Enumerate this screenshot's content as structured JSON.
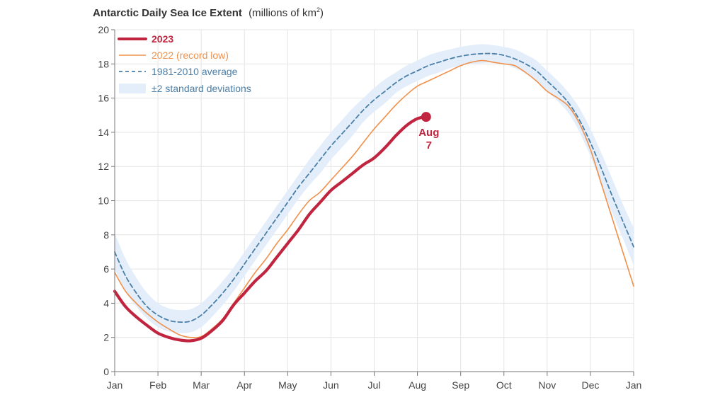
{
  "chart_data": {
    "type": "line",
    "title": "Antarctic Daily Sea Ice Extent",
    "title_units": "(millions of km",
    "title_units_sup": "2",
    "title_units_close": ")",
    "xlabel": "",
    "ylabel": "",
    "ylim": [
      0,
      20
    ],
    "xlim": [
      0,
      12
    ],
    "grid": true,
    "legend_position": "top-left",
    "y_ticks": [
      "0",
      "2",
      "4",
      "6",
      "8",
      "10",
      "12",
      "14",
      "16",
      "18",
      "20"
    ],
    "x_ticks": [
      "Jan",
      "Feb",
      "Mar",
      "Apr",
      "May",
      "Jun",
      "Jul",
      "Aug",
      "Sep",
      "Oct",
      "Nov",
      "Dec",
      "Jan"
    ],
    "legend": {
      "series_2023": "2023",
      "series_2022": "2022 (record low)",
      "series_avg": "1981-2010 average",
      "series_band": "±2 standard deviations"
    },
    "annotation": {
      "line1": "Aug",
      "line2": "7",
      "x": 7.2,
      "y": 14.9
    },
    "colors": {
      "series_2023": "#c0243f",
      "series_2022": "#f0904a",
      "series_avg": "#4a7fa8",
      "band": "#e3eefa",
      "grid": "#e4e4e4",
      "axis": "#777777"
    },
    "series": [
      {
        "name": "2023",
        "x": [
          0,
          0.25,
          0.5,
          0.75,
          1.0,
          1.25,
          1.5,
          1.75,
          2.0,
          2.25,
          2.5,
          2.75,
          3.0,
          3.25,
          3.5,
          3.75,
          4.0,
          4.25,
          4.5,
          4.75,
          5.0,
          5.25,
          5.5,
          5.75,
          6.0,
          6.25,
          6.5,
          6.75,
          7.0,
          7.2
        ],
        "values": [
          4.7,
          3.8,
          3.2,
          2.7,
          2.25,
          2.0,
          1.85,
          1.8,
          1.95,
          2.4,
          3.0,
          3.9,
          4.6,
          5.3,
          5.9,
          6.7,
          7.5,
          8.3,
          9.2,
          9.9,
          10.6,
          11.1,
          11.6,
          12.1,
          12.5,
          13.1,
          13.8,
          14.4,
          14.8,
          14.9
        ]
      },
      {
        "name": "2022 (record low)",
        "x": [
          0,
          0.25,
          0.5,
          0.75,
          1.0,
          1.25,
          1.5,
          1.75,
          2.0,
          2.25,
          2.5,
          2.75,
          3.0,
          3.25,
          3.5,
          3.75,
          4.0,
          4.25,
          4.5,
          4.75,
          5.0,
          5.25,
          5.5,
          5.75,
          6.0,
          6.25,
          6.5,
          6.75,
          7.0,
          7.25,
          7.5,
          7.75,
          8.0,
          8.25,
          8.5,
          8.75,
          9.0,
          9.25,
          9.5,
          9.75,
          10.0,
          10.25,
          10.5,
          10.75,
          11.0,
          11.25,
          11.5,
          11.75,
          12.0
        ],
        "values": [
          5.8,
          4.7,
          4.0,
          3.4,
          2.9,
          2.5,
          2.15,
          2.0,
          2.05,
          2.5,
          3.1,
          4.0,
          4.9,
          5.8,
          6.6,
          7.5,
          8.3,
          9.2,
          10.0,
          10.5,
          11.2,
          11.9,
          12.6,
          13.4,
          14.2,
          14.9,
          15.6,
          16.2,
          16.7,
          17.0,
          17.3,
          17.6,
          17.9,
          18.1,
          18.2,
          18.1,
          18.0,
          17.9,
          17.5,
          17.0,
          16.4,
          16.0,
          15.5,
          14.5,
          13.0,
          11.0,
          9.0,
          7.0,
          5.0
        ]
      },
      {
        "name": "1981-2010 average",
        "x": [
          0,
          0.25,
          0.5,
          0.75,
          1.0,
          1.25,
          1.5,
          1.75,
          2.0,
          2.25,
          2.5,
          2.75,
          3.0,
          3.25,
          3.5,
          3.75,
          4.0,
          4.25,
          4.5,
          4.75,
          5.0,
          5.25,
          5.5,
          5.75,
          6.0,
          6.25,
          6.5,
          6.75,
          7.0,
          7.25,
          7.5,
          7.75,
          8.0,
          8.25,
          8.5,
          8.75,
          9.0,
          9.25,
          9.5,
          9.75,
          10.0,
          10.25,
          10.5,
          10.75,
          11.0,
          11.25,
          11.5,
          11.75,
          12.0
        ],
        "values": [
          7.0,
          5.6,
          4.6,
          3.8,
          3.3,
          3.0,
          2.9,
          2.95,
          3.3,
          3.9,
          4.6,
          5.4,
          6.3,
          7.2,
          8.1,
          9.0,
          9.9,
          10.8,
          11.6,
          12.4,
          13.2,
          13.9,
          14.6,
          15.3,
          15.9,
          16.4,
          16.9,
          17.3,
          17.6,
          17.9,
          18.1,
          18.3,
          18.45,
          18.55,
          18.6,
          18.6,
          18.5,
          18.3,
          18.0,
          17.6,
          17.0,
          16.4,
          15.7,
          14.7,
          13.4,
          11.9,
          10.3,
          8.8,
          7.3
        ]
      }
    ],
    "band": {
      "name": "±2 standard deviations",
      "x": [
        0,
        0.25,
        0.5,
        0.75,
        1.0,
        1.25,
        1.5,
        1.75,
        2.0,
        2.25,
        2.5,
        2.75,
        3.0,
        3.25,
        3.5,
        3.75,
        4.0,
        4.25,
        4.5,
        4.75,
        5.0,
        5.25,
        5.5,
        5.75,
        6.0,
        6.25,
        6.5,
        6.75,
        7.0,
        7.25,
        7.5,
        7.75,
        8.0,
        8.25,
        8.5,
        8.75,
        9.0,
        9.25,
        9.5,
        9.75,
        10.0,
        10.25,
        10.5,
        10.75,
        11.0,
        11.25,
        11.5,
        11.75,
        12.0
      ],
      "upper": [
        8.1,
        6.6,
        5.5,
        4.6,
        4.0,
        3.7,
        3.6,
        3.65,
        4.0,
        4.6,
        5.3,
        6.1,
        7.0,
        7.9,
        8.8,
        9.7,
        10.6,
        11.5,
        12.4,
        13.2,
        14.0,
        14.7,
        15.4,
        16.0,
        16.6,
        17.1,
        17.5,
        17.9,
        18.2,
        18.5,
        18.7,
        18.85,
        19.0,
        19.1,
        19.15,
        19.1,
        19.0,
        18.85,
        18.55,
        18.2,
        17.6,
        17.0,
        16.3,
        15.4,
        14.2,
        12.8,
        11.3,
        9.8,
        8.4
      ],
      "lower": [
        6.0,
        4.7,
        3.8,
        3.1,
        2.6,
        2.35,
        2.25,
        2.3,
        2.6,
        3.2,
        3.9,
        4.7,
        5.6,
        6.5,
        7.4,
        8.3,
        9.2,
        10.1,
        10.9,
        11.6,
        12.4,
        13.1,
        13.8,
        14.6,
        15.2,
        15.7,
        16.3,
        16.7,
        17.0,
        17.3,
        17.5,
        17.75,
        17.9,
        18.0,
        18.05,
        18.1,
        18.0,
        17.75,
        17.45,
        17.0,
        16.4,
        15.8,
        15.1,
        14.0,
        12.6,
        11.0,
        9.3,
        7.8,
        6.2
      ]
    }
  }
}
